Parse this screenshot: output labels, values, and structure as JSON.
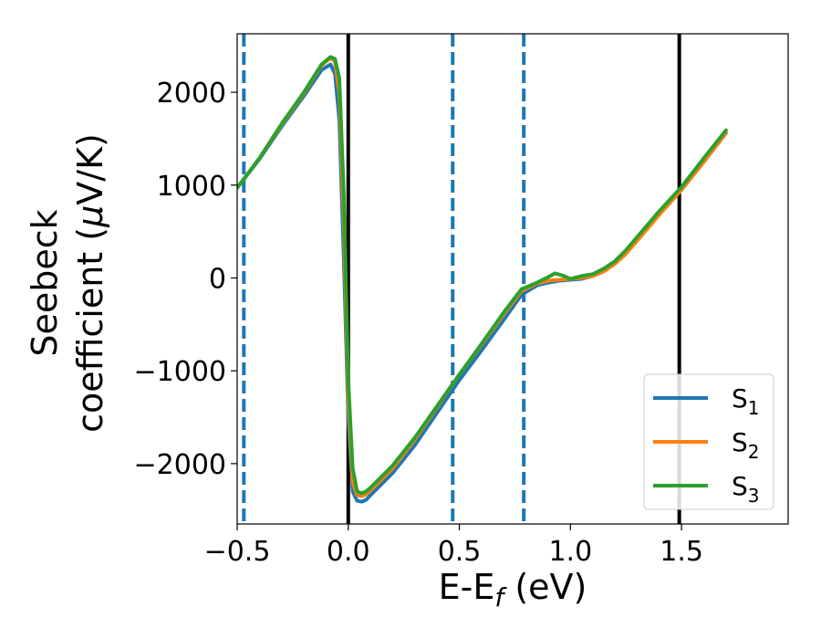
{
  "chart_data": {
    "type": "line",
    "xlabel": {
      "main": "E-E",
      "sub": "f",
      "unit": " (eV)"
    },
    "ylabel": {
      "line1": "Seebeck",
      "line2_prefix": "coefficient  (",
      "mu": "μ",
      "line2_suffix": "V/K)"
    },
    "xlim": [
      -0.5,
      1.98
    ],
    "ylim": [
      -2650,
      2630
    ],
    "x_ticks": [
      {
        "value": -0.5,
        "label": "−0.5"
      },
      {
        "value": 0.0,
        "label": "0.0"
      },
      {
        "value": 0.5,
        "label": "0.5"
      },
      {
        "value": 1.0,
        "label": "1.0"
      },
      {
        "value": 1.5,
        "label": "1.5"
      }
    ],
    "y_ticks": [
      {
        "value": 2000,
        "label": "2000"
      },
      {
        "value": 1000,
        "label": "1000"
      },
      {
        "value": 0,
        "label": "0"
      },
      {
        "value": -1000,
        "label": "−1000"
      },
      {
        "value": -2000,
        "label": "−2000"
      }
    ],
    "vlines": [
      {
        "x": -0.47,
        "style": "dashed",
        "color": "#1f77b4"
      },
      {
        "x": 0.47,
        "style": "dashed",
        "color": "#1f77b4"
      },
      {
        "x": 0.79,
        "style": "dashed",
        "color": "#1f77b4"
      },
      {
        "x": 0.0,
        "style": "solid",
        "color": "#000000"
      },
      {
        "x": 1.49,
        "style": "solid",
        "color": "#000000"
      }
    ],
    "grid": false,
    "legend_position": "bottom-right",
    "series": [
      {
        "name": "S",
        "sub": "1",
        "color": "#1f77b4",
        "x": [
          -0.5,
          -0.4,
          -0.3,
          -0.2,
          -0.12,
          -0.08,
          -0.06,
          -0.04,
          -0.02,
          0.0,
          0.02,
          0.04,
          0.06,
          0.08,
          0.1,
          0.2,
          0.3,
          0.4,
          0.5,
          0.6,
          0.7,
          0.78,
          0.85,
          0.9,
          0.95,
          1.0,
          1.05,
          1.1,
          1.15,
          1.2,
          1.25,
          1.3,
          1.4,
          1.5,
          1.6,
          1.7
        ],
        "values": [
          970,
          1280,
          1630,
          1960,
          2240,
          2300,
          2200,
          1700,
          200,
          -1500,
          -2300,
          -2400,
          -2410,
          -2390,
          -2340,
          -2100,
          -1800,
          -1450,
          -1100,
          -780,
          -450,
          -180,
          -80,
          -50,
          -30,
          -20,
          -10,
          20,
          80,
          160,
          280,
          420,
          700,
          950,
          1250,
          1560
        ]
      },
      {
        "name": "S",
        "sub": "2",
        "color": "#ff7f0e",
        "x": [
          -0.5,
          -0.4,
          -0.3,
          -0.2,
          -0.12,
          -0.08,
          -0.06,
          -0.04,
          -0.02,
          0.0,
          0.02,
          0.04,
          0.06,
          0.08,
          0.1,
          0.2,
          0.3,
          0.4,
          0.5,
          0.6,
          0.7,
          0.78,
          0.85,
          0.9,
          0.95,
          1.0,
          1.05,
          1.1,
          1.15,
          1.2,
          1.25,
          1.3,
          1.4,
          1.5,
          1.6,
          1.7
        ],
        "values": [
          970,
          1290,
          1650,
          1990,
          2290,
          2370,
          2330,
          2000,
          600,
          -1300,
          -2200,
          -2340,
          -2350,
          -2330,
          -2290,
          -2050,
          -1740,
          -1390,
          -1040,
          -720,
          -390,
          -140,
          -60,
          -30,
          -20,
          -10,
          0,
          20,
          70,
          150,
          260,
          400,
          680,
          950,
          1250,
          1560
        ]
      },
      {
        "name": "S",
        "sub": "3",
        "color": "#2ca02c",
        "x": [
          -0.5,
          -0.4,
          -0.3,
          -0.2,
          -0.12,
          -0.08,
          -0.06,
          -0.04,
          -0.02,
          0.0,
          0.02,
          0.04,
          0.06,
          0.08,
          0.1,
          0.2,
          0.3,
          0.4,
          0.5,
          0.6,
          0.7,
          0.78,
          0.85,
          0.9,
          0.93,
          0.96,
          1.0,
          1.05,
          1.1,
          1.15,
          1.2,
          1.25,
          1.3,
          1.4,
          1.5,
          1.6,
          1.7
        ],
        "values": [
          970,
          1290,
          1660,
          2000,
          2300,
          2380,
          2360,
          2150,
          900,
          -1100,
          -2050,
          -2300,
          -2320,
          -2300,
          -2260,
          -2020,
          -1720,
          -1380,
          -1040,
          -710,
          -370,
          -120,
          -50,
          10,
          50,
          30,
          -10,
          20,
          40,
          100,
          180,
          300,
          440,
          720,
          980,
          1290,
          1590
        ]
      }
    ]
  }
}
